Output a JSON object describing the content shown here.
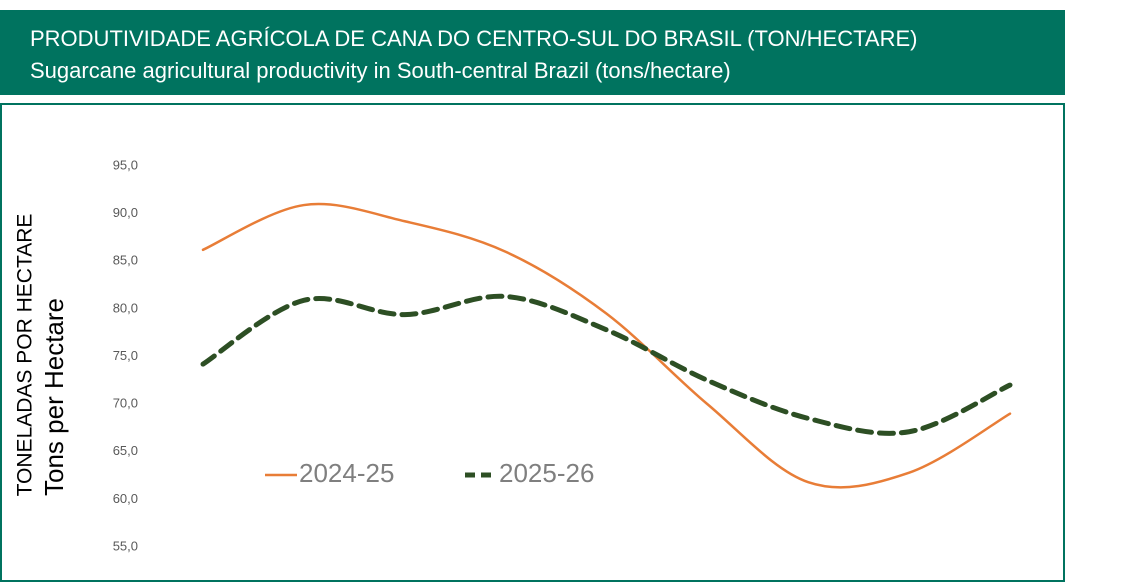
{
  "chart_data": {
    "type": "line",
    "title": "PRODUTIVIDADE AGRÍCOLA DE CANA DO CENTRO-SUL DO BRASIL (TON/HECTARE)",
    "subtitle": "Sugarcane agricultural productivity in South-central Brazil (tons/hectare)",
    "y_label": "TONELADAS POR HECTARE",
    "y_label_en": "Tons per Hectare",
    "categories": [
      null,
      null,
      null,
      null,
      null,
      null,
      null,
      null,
      null
    ],
    "series": [
      {
        "name": "2024-25",
        "color": "#e87d37",
        "values": [
          86.2,
          90.9,
          89.2,
          86.0,
          79.5,
          70.0,
          61.8,
          62.8,
          69.0
        ]
      },
      {
        "name": "2025-26",
        "color": "#2d4f24",
        "values": [
          74.2,
          80.9,
          79.4,
          81.3,
          77.8,
          72.5,
          68.5,
          67.1,
          72.0
        ]
      }
    ],
    "ylim": [
      55,
      95
    ],
    "yticks": [
      {
        "value": 55,
        "label": "55,0"
      },
      {
        "value": 60,
        "label": "60,0"
      },
      {
        "value": 65,
        "label": "65,0"
      },
      {
        "value": 70,
        "label": "70,0"
      },
      {
        "value": 75,
        "label": "75,0"
      },
      {
        "value": 80,
        "label": "80,0"
      },
      {
        "value": 85,
        "label": "85,0"
      },
      {
        "value": 90,
        "label": "90,0"
      },
      {
        "value": 95,
        "label": "95,0"
      }
    ],
    "grid": false
  }
}
